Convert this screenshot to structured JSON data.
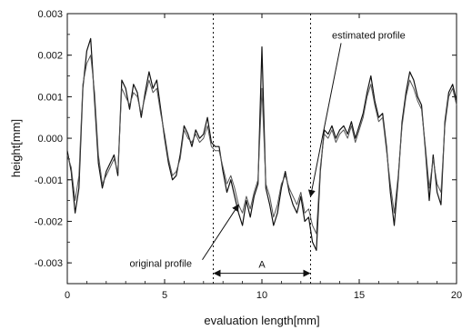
{
  "chart_data": {
    "type": "line",
    "title": "",
    "xlabel": "evaluation length[mm]",
    "ylabel": "height[mm]",
    "xlim": [
      0,
      20
    ],
    "ylim": [
      -0.0035,
      0.003
    ],
    "grid": false,
    "legend": "none",
    "x_ticks": [
      0,
      5,
      10,
      15,
      20
    ],
    "x_tick_labels": [
      "0",
      "5",
      "10",
      "15",
      "20"
    ],
    "y_ticks": [
      0.003,
      0.002,
      0.001,
      0.0,
      -0.001,
      -0.002,
      -0.003
    ],
    "y_tick_labels": [
      "0.003",
      "0.002",
      "0.001",
      "0.000",
      "-0.001",
      "-0.002",
      "-0.003"
    ],
    "series": [
      {
        "color": "#111111",
        "x": [
          0.0,
          0.2,
          0.4,
          0.6,
          0.8,
          1.0,
          1.2,
          1.4,
          1.6,
          1.8,
          2.0,
          2.2,
          2.4,
          2.6,
          2.8,
          3.0,
          3.2,
          3.4,
          3.6,
          3.8,
          4.0,
          4.2,
          4.4,
          4.6,
          4.8,
          5.0,
          5.2,
          5.4,
          5.6,
          5.8,
          6.0,
          6.2,
          6.4,
          6.6,
          6.8,
          7.0,
          7.2,
          7.4,
          7.6,
          7.8,
          8.0,
          8.2,
          8.4,
          8.6,
          8.8,
          9.0,
          9.2,
          9.4,
          9.6,
          9.8,
          10.0,
          10.2,
          10.4,
          10.6,
          10.8,
          11.0,
          11.2,
          11.4,
          11.6,
          11.8,
          12.0,
          12.2,
          12.4,
          12.6,
          12.8,
          13.0,
          13.2,
          13.4,
          13.6,
          13.8,
          14.0,
          14.2,
          14.4,
          14.6,
          14.8,
          15.0,
          15.2,
          15.4,
          15.6,
          15.8,
          16.0,
          16.2,
          16.4,
          16.6,
          16.8,
          17.0,
          17.2,
          17.4,
          17.6,
          17.8,
          18.0,
          18.2,
          18.4,
          18.6,
          18.8,
          19.0,
          19.2,
          19.4,
          19.6,
          19.8,
          20.0
        ],
        "values": [
          -0.0003,
          -0.0008,
          -0.0018,
          -0.0012,
          0.0012,
          0.0021,
          0.0024,
          0.0009,
          -0.0006,
          -0.0012,
          -0.0008,
          -0.0006,
          -0.0004,
          -0.0009,
          0.0014,
          0.0012,
          0.0007,
          0.0013,
          0.0011,
          0.0005,
          0.0011,
          0.0016,
          0.0012,
          0.0014,
          0.0007,
          0.0,
          -0.0006,
          -0.001,
          -0.0009,
          -0.0004,
          0.0003,
          0.0001,
          -0.0002,
          0.0002,
          0.0,
          0.0001,
          0.0005,
          -0.0001,
          -0.0002,
          -0.0002,
          -0.0008,
          -0.0013,
          -0.001,
          -0.0014,
          -0.0018,
          -0.0021,
          -0.0015,
          -0.0019,
          -0.0014,
          -0.0011,
          0.0022,
          -0.0012,
          -0.0016,
          -0.0021,
          -0.0018,
          -0.0012,
          -0.0008,
          -0.0013,
          -0.0016,
          -0.0018,
          -0.0014,
          -0.002,
          -0.0019,
          -0.0025,
          -0.0027,
          -0.0008,
          0.0002,
          0.0001,
          0.0003,
          0.0,
          0.0002,
          0.0003,
          0.0001,
          0.0004,
          0.0,
          0.0003,
          0.0006,
          0.0011,
          0.0015,
          0.0009,
          0.0005,
          0.0006,
          -0.0002,
          -0.0013,
          -0.0021,
          -0.001,
          0.0004,
          0.0011,
          0.0016,
          0.0014,
          0.001,
          0.0008,
          -0.0003,
          -0.0015,
          -0.0004,
          -0.0013,
          -0.0016,
          0.0004,
          0.0011,
          0.0013,
          0.0009
        ]
      },
      {
        "color": "#555555",
        "x": [
          0.0,
          0.2,
          0.4,
          0.6,
          0.8,
          1.0,
          1.2,
          1.4,
          1.6,
          1.8,
          2.0,
          2.2,
          2.4,
          2.6,
          2.8,
          3.0,
          3.2,
          3.4,
          3.6,
          3.8,
          4.0,
          4.2,
          4.4,
          4.6,
          4.8,
          5.0,
          5.2,
          5.4,
          5.6,
          5.8,
          6.0,
          6.2,
          6.4,
          6.6,
          6.8,
          7.0,
          7.2,
          7.4,
          7.6,
          7.8,
          8.0,
          8.2,
          8.4,
          8.6,
          8.8,
          9.0,
          9.2,
          9.4,
          9.6,
          9.8,
          10.0,
          10.2,
          10.4,
          10.6,
          10.8,
          11.0,
          11.2,
          11.4,
          11.6,
          11.8,
          12.0,
          12.2,
          12.4,
          12.6,
          12.8,
          13.0,
          13.2,
          13.4,
          13.6,
          13.8,
          14.0,
          14.2,
          14.4,
          14.6,
          14.8,
          15.0,
          15.2,
          15.4,
          15.6,
          15.8,
          16.0,
          16.2,
          16.4,
          16.6,
          16.8,
          17.0,
          17.2,
          17.4,
          17.6,
          17.8,
          18.0,
          18.2,
          18.4,
          18.6,
          18.8,
          19.0,
          19.2,
          19.4,
          19.6,
          19.8,
          20.0
        ],
        "values": [
          -0.0004,
          -0.0007,
          -0.0015,
          -0.0009,
          0.0013,
          0.0018,
          0.002,
          0.0011,
          -0.0004,
          -0.0011,
          -0.0009,
          -0.0007,
          -0.0005,
          -0.0008,
          0.0012,
          0.001,
          0.0008,
          0.0011,
          0.001,
          0.0006,
          0.001,
          0.0014,
          0.0011,
          0.0012,
          0.0006,
          0.0001,
          -0.0005,
          -0.0009,
          -0.0008,
          -0.0005,
          0.0002,
          0.0,
          -0.0001,
          0.0001,
          -0.0001,
          0.0,
          0.0003,
          -0.0002,
          -0.0003,
          -0.0003,
          -0.0007,
          -0.0011,
          -0.0009,
          -0.0012,
          -0.0016,
          -0.0018,
          -0.0014,
          -0.0017,
          -0.0013,
          -0.001,
          0.0012,
          -0.0011,
          -0.0014,
          -0.0019,
          -0.0016,
          -0.0011,
          -0.0009,
          -0.0012,
          -0.0014,
          -0.0016,
          -0.0013,
          -0.0018,
          -0.0017,
          -0.0021,
          -0.0023,
          -0.0007,
          0.0001,
          0.0,
          0.0002,
          -0.0001,
          0.0001,
          0.0002,
          0.0,
          0.0003,
          -0.0001,
          0.0002,
          0.0005,
          0.001,
          0.0013,
          0.0008,
          0.0004,
          0.0005,
          -0.0003,
          -0.0011,
          -0.0018,
          -0.0009,
          0.0003,
          0.001,
          0.0014,
          0.0012,
          0.0009,
          0.0007,
          -0.0002,
          -0.0012,
          -0.0005,
          -0.0011,
          -0.0013,
          0.0003,
          0.001,
          0.0012,
          0.0008
        ]
      }
    ],
    "guide_lines_x": [
      7.5,
      12.5
    ],
    "annotations": [
      {
        "id": "estimated",
        "text": "estimated profile",
        "tx": 13.6,
        "ty": 0.0024,
        "ax": 12.5,
        "ay": -0.0014
      },
      {
        "id": "original",
        "text": "original profile",
        "tx": 3.2,
        "ty": -0.0031,
        "ax": 8.8,
        "ay": -0.0016
      }
    ],
    "span": {
      "text": "A",
      "from": 7.5,
      "to": 12.5,
      "y": -0.00325
    }
  }
}
